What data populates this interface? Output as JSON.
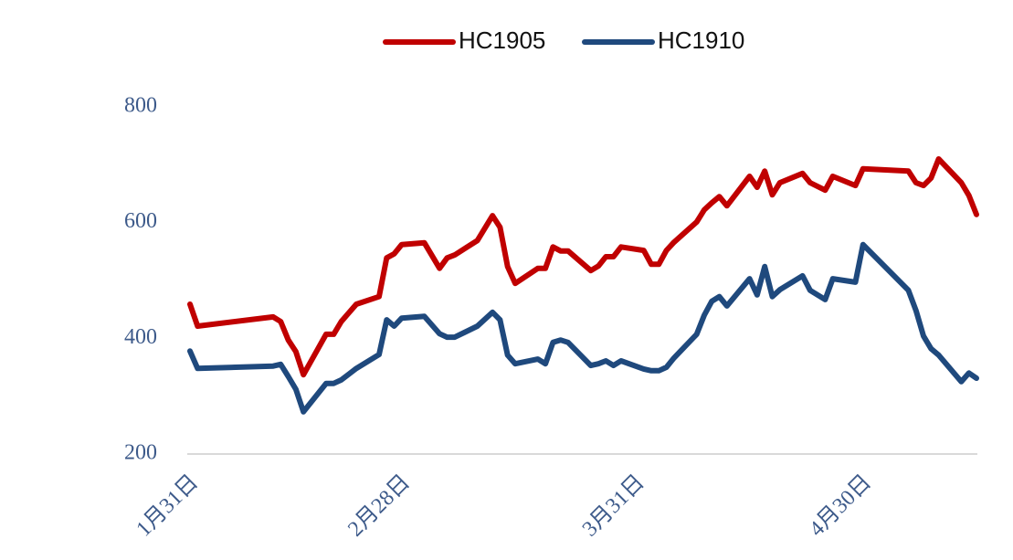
{
  "chart_data": {
    "type": "line",
    "x": [
      0,
      1,
      11,
      12,
      13,
      14,
      15,
      18,
      19,
      20,
      22,
      25,
      26,
      27,
      28,
      31,
      33,
      34,
      35,
      38,
      40,
      41,
      42,
      43,
      46,
      47,
      48,
      49,
      50,
      53,
      54,
      55,
      56,
      57,
      60,
      61,
      62,
      63,
      64,
      67,
      68,
      69,
      70,
      71,
      74,
      75,
      76,
      77,
      78,
      81,
      82,
      84,
      85,
      88,
      89,
      95,
      96,
      97,
      98,
      99,
      102,
      103,
      104
    ],
    "series": [
      {
        "name": "HC1905",
        "color": "#c00000",
        "values": [
          459,
          421,
          437,
          429,
          397,
          377,
          337,
          407,
          407,
          429,
          459,
          472,
          539,
          546,
          562,
          565,
          521,
          539,
          544,
          569,
          612,
          592,
          524,
          495,
          521,
          521,
          558,
          551,
          551,
          517,
          525,
          541,
          541,
          558,
          552,
          528,
          528,
          552,
          566,
          601,
          622,
          634,
          645,
          629,
          680,
          661,
          689,
          648,
          669,
          685,
          669,
          656,
          680,
          664,
          693,
          689,
          669,
          664,
          677,
          710,
          669,
          647,
          614
        ]
      },
      {
        "name": "HC1910",
        "color": "#1f497d",
        "values": [
          378,
          348,
          352,
          355,
          334,
          312,
          273,
          322,
          322,
          328,
          348,
          372,
          432,
          421,
          435,
          438,
          408,
          402,
          402,
          421,
          445,
          432,
          371,
          356,
          364,
          356,
          393,
          397,
          393,
          353,
          356,
          361,
          353,
          361,
          347,
          344,
          344,
          350,
          366,
          407,
          440,
          464,
          472,
          456,
          503,
          475,
          524,
          472,
          484,
          508,
          483,
          467,
          503,
          497,
          562,
          483,
          448,
          404,
          382,
          371,
          325,
          340,
          331
        ]
      }
    ],
    "xlim": [
      0,
      104
    ],
    "xticks": [
      {
        "value": 0,
        "label": "1月31日"
      },
      {
        "value": 28,
        "label": "2月28日"
      },
      {
        "value": 59,
        "label": "3月31日"
      },
      {
        "value": 89,
        "label": "4月30日"
      }
    ],
    "ylim": [
      200,
      800
    ],
    "yticks": [
      200,
      400,
      600,
      800
    ],
    "grid": false,
    "legend": "top"
  }
}
